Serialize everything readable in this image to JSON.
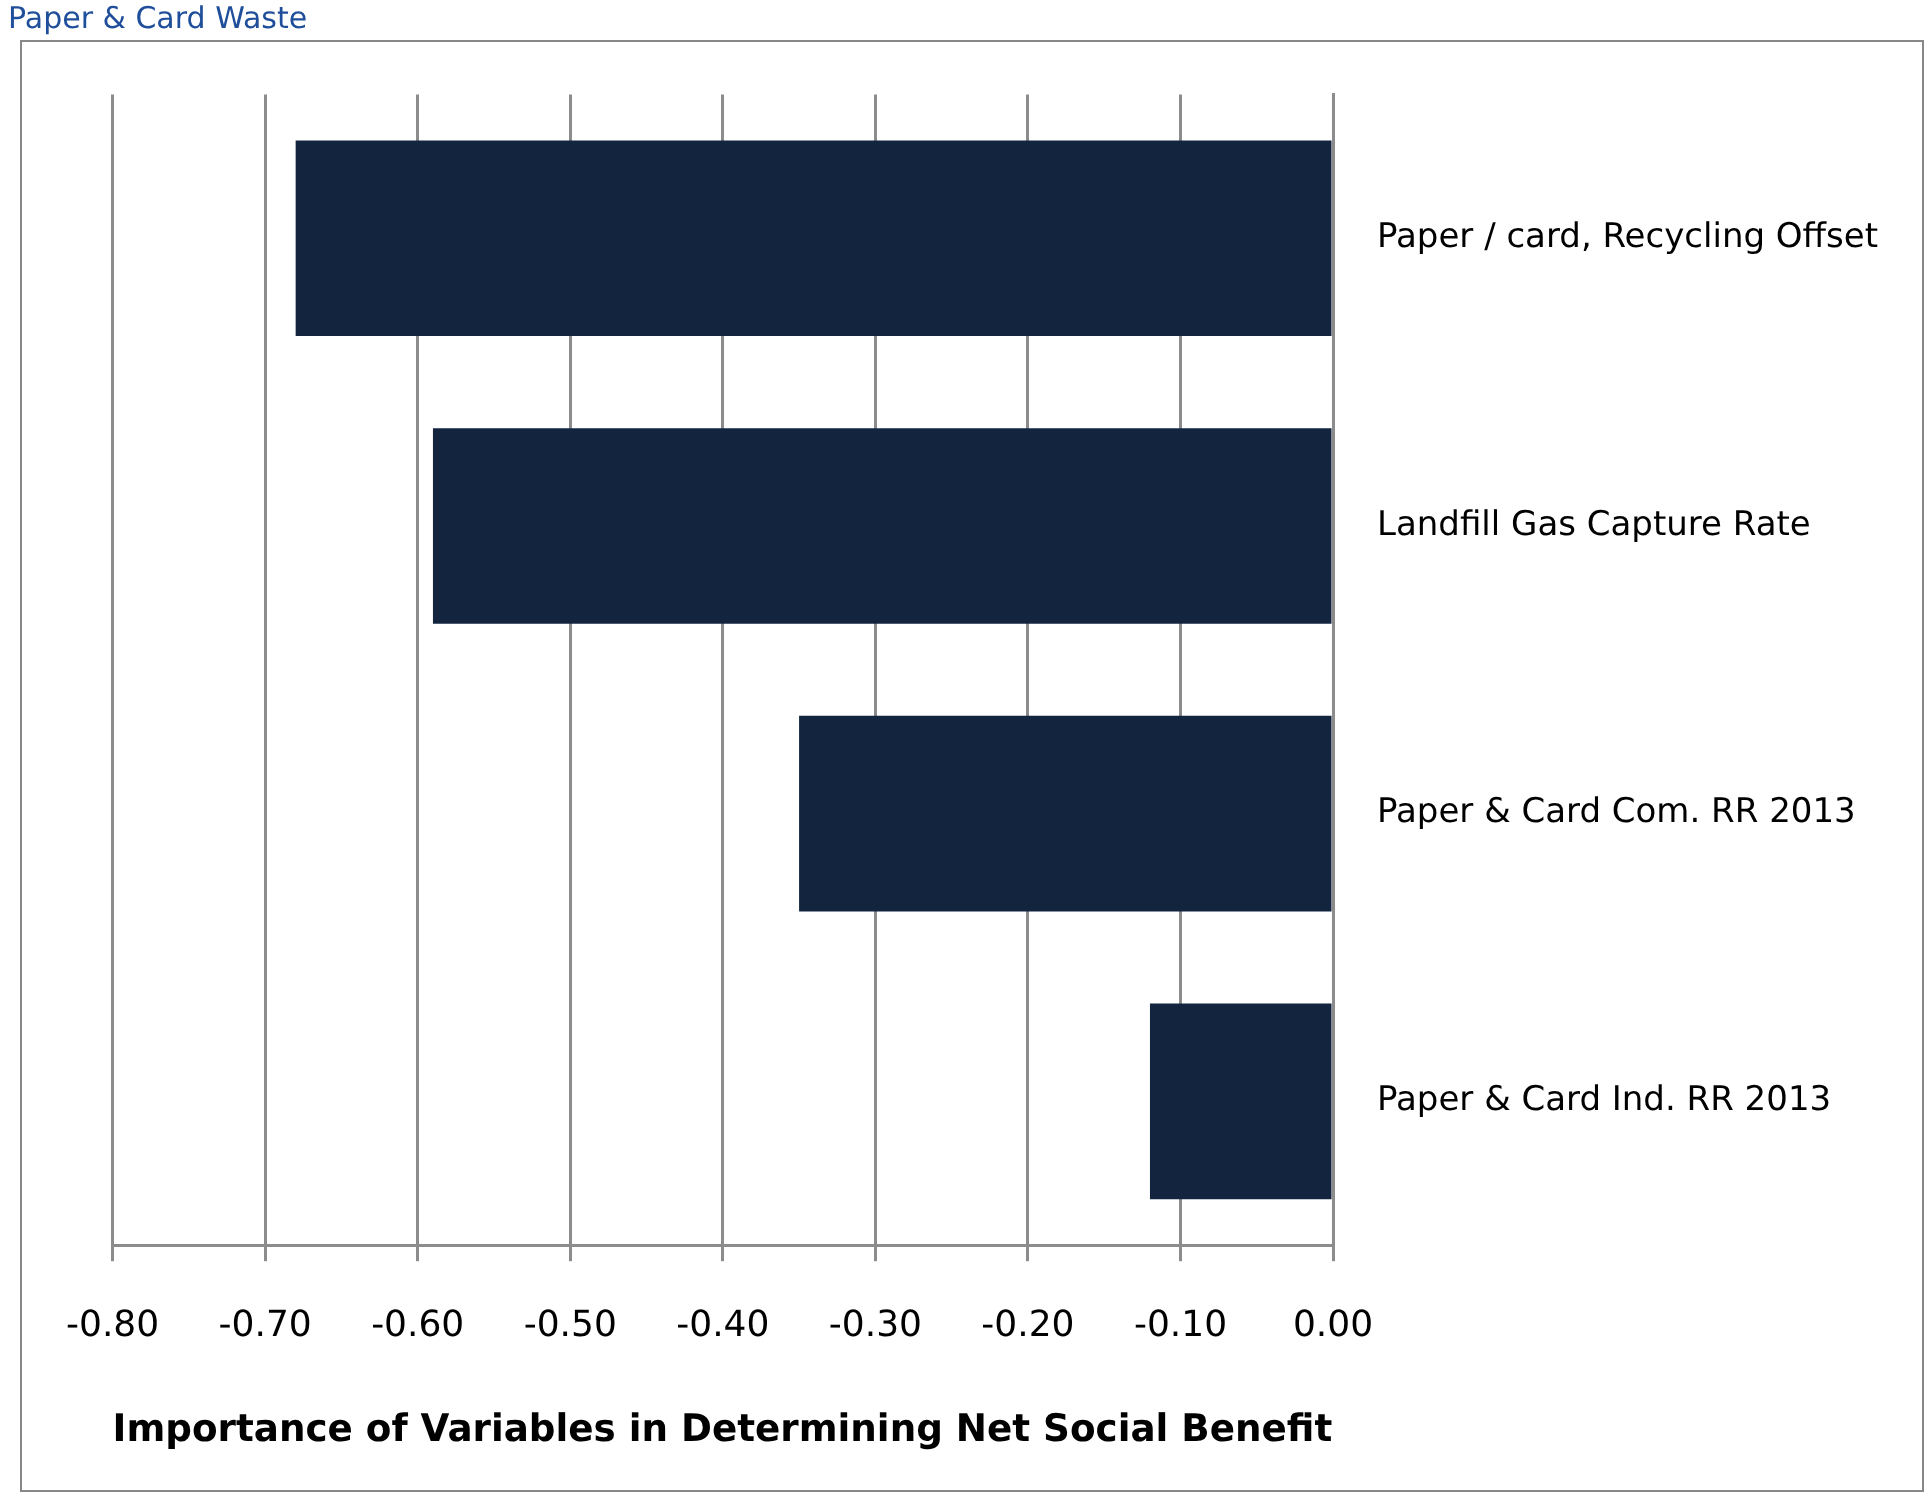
{
  "chart_data": {
    "type": "bar",
    "orientation": "horizontal",
    "title": "Paper & Card Waste",
    "xlabel": "Importance of Variables in Determining Net Social Benefit",
    "categories": [
      "Paper / card, Recycling Offset",
      "Landfill Gas Capture Rate",
      "Paper & Card Com. RR 2013",
      "Paper & Card Ind. RR 2013"
    ],
    "values": [
      -0.68,
      -0.59,
      -0.35,
      -0.12
    ],
    "color": "#13243f",
    "xlim": [
      -0.8,
      0
    ],
    "xticks": [
      {
        "value": -0.8,
        "label": "-0.80"
      },
      {
        "value": -0.7,
        "label": "-0.70"
      },
      {
        "value": -0.6,
        "label": "-0.60"
      },
      {
        "value": -0.5,
        "label": "-0.50"
      },
      {
        "value": -0.4,
        "label": "-0.40"
      },
      {
        "value": -0.3,
        "label": "-0.30"
      },
      {
        "value": -0.2,
        "label": "-0.20"
      },
      {
        "value": -0.1,
        "label": "-0.10"
      },
      {
        "value": 0,
        "label": "0.00"
      }
    ],
    "grid": "x",
    "legend": false
  }
}
